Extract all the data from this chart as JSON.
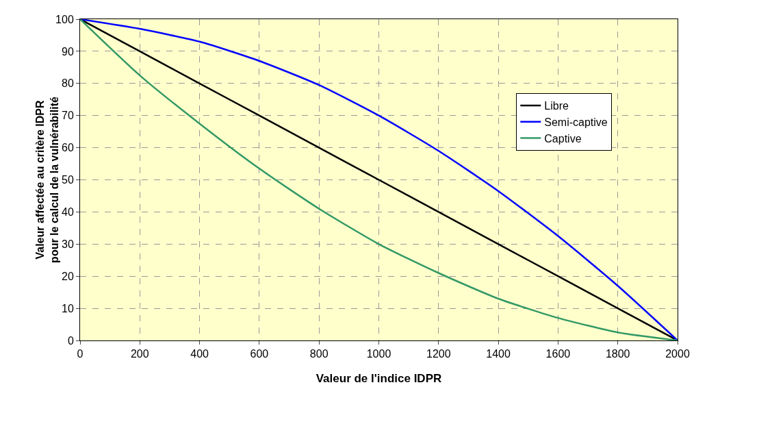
{
  "chart_data": {
    "type": "line",
    "xlabel": "Valeur de l'indice IDPR",
    "ylabel": "Valeur affectée au critère IDPR\npour le calcul de la vulnérabilité",
    "x": [
      0,
      200,
      400,
      600,
      800,
      1000,
      1200,
      1400,
      1600,
      1800,
      2000
    ],
    "series": [
      {
        "name": "Libre",
        "color": "#000000",
        "values": [
          100,
          90,
          80,
          70,
          60,
          50,
          40,
          30,
          20,
          10,
          0
        ]
      },
      {
        "name": "Semi-captive",
        "color": "#0000ff",
        "values": [
          100,
          97,
          93,
          87,
          79.5,
          70,
          59,
          46.5,
          32.5,
          17,
          0
        ]
      },
      {
        "name": "Captive",
        "color": "#339966",
        "values": [
          100,
          82.5,
          67.5,
          53.5,
          41,
          30,
          21,
          13,
          7,
          2.5,
          0
        ]
      }
    ],
    "xlim": [
      0,
      2000
    ],
    "xticks": [
      0,
      200,
      400,
      600,
      800,
      1000,
      1200,
      1400,
      1600,
      1800,
      2000
    ],
    "ylim": [
      0,
      100
    ],
    "yticks": [
      0,
      10,
      20,
      30,
      40,
      50,
      60,
      70,
      80,
      90,
      100
    ],
    "grid": true,
    "legend": "right",
    "marker": "none",
    "line_style": "solid"
  }
}
